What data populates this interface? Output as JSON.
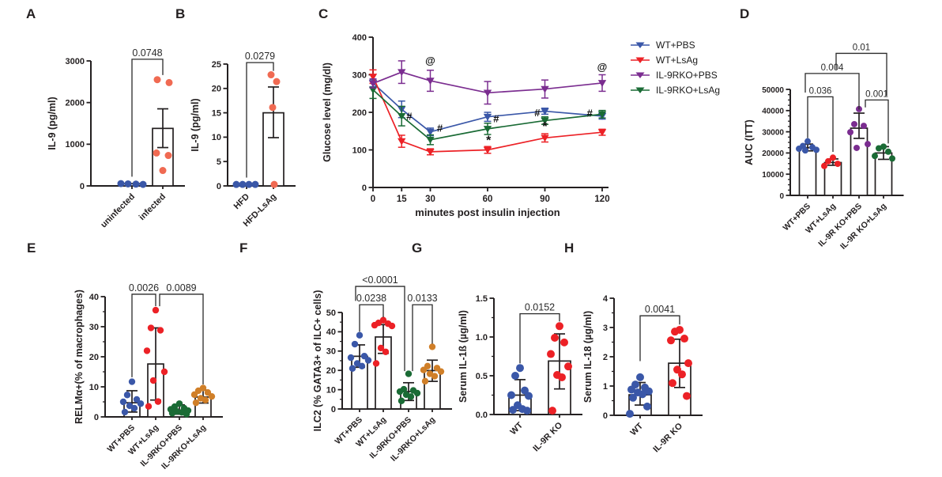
{
  "figure_title": "",
  "chart_data": [
    {
      "id": "A",
      "letter": "A",
      "type": "scatter-bar",
      "ylabel": "IL-9 (pg/ml)",
      "ymax": 3000,
      "yticks": [
        0,
        1000,
        2000,
        3000
      ],
      "groups": [
        {
          "label": "uninfected",
          "color": "#3A57A8",
          "bar": 55,
          "dots": [
            55,
            48,
            42,
            36
          ],
          "jit": [
            -14,
            -5,
            5,
            14
          ]
        },
        {
          "label": "infected",
          "color": "#F06A52",
          "bar": 1380,
          "err": [
            920,
            1850
          ],
          "dots": [
            2550,
            2480,
            790,
            730,
            370
          ],
          "jit": [
            -7,
            8,
            -8,
            7,
            0
          ]
        }
      ],
      "brackets": [
        {
          "g1": 0,
          "g2": 1,
          "top": 3040,
          "b1": 220,
          "b2": 2660,
          "label": "0.0748"
        }
      ]
    },
    {
      "id": "B",
      "letter": "B",
      "type": "scatter-bar",
      "ylabel": "IL-9 (pg/ml)",
      "ymax": 25,
      "yticks": [
        0,
        5,
        10,
        15,
        20,
        25
      ],
      "groups": [
        {
          "label": "HFD",
          "color": "#3A57A8",
          "bar": 0.3,
          "dots": [
            0.3,
            0.3,
            0.3,
            0.3
          ],
          "jit": [
            -13,
            -5,
            3,
            11
          ]
        },
        {
          "label": "HFD-LsAg",
          "color": "#F06A52",
          "bar": 15.0,
          "err": [
            9.9,
            20.3
          ],
          "dots": [
            22.8,
            21.4,
            16.1,
            0.3
          ],
          "jit": [
            -3,
            4,
            -1,
            1
          ]
        }
      ],
      "brackets": [
        {
          "g1": 0,
          "g2": 1,
          "top": 25.3,
          "b1": 1.7,
          "b2": 23.6,
          "label": "0.0279"
        }
      ]
    },
    {
      "id": "C",
      "letter": "C",
      "type": "line",
      "ylabel": "Glucose level (mg/dl)",
      "xlabel": "minutes post insulin injection",
      "ymax": 400,
      "yticks": [
        0,
        100,
        200,
        300,
        400
      ],
      "x": [
        0,
        15,
        30,
        60,
        90,
        120
      ],
      "xmax": 120,
      "series": [
        {
          "name": "WT+PBS",
          "color": "#3A57A8",
          "values": [
            278,
            208,
            148,
            188,
            203,
            190
          ],
          "err": [
            10,
            22,
            10,
            12,
            8,
            8
          ]
        },
        {
          "name": "WT+LsAg",
          "color": "#EC2126",
          "values": [
            295,
            123,
            95,
            100,
            132,
            147
          ],
          "err": [
            18,
            16,
            8,
            9,
            11,
            8
          ]
        },
        {
          "name": "IL-9RKO+PBS",
          "color": "#7B2D90",
          "values": [
            277,
            307,
            284,
            252,
            262,
            278
          ],
          "err": [
            12,
            30,
            28,
            30,
            24,
            22
          ]
        },
        {
          "name": "IL-9RKO+LsAg",
          "color": "#1A6B35",
          "values": [
            260,
            190,
            127,
            156,
            178,
            195
          ],
          "err": [
            23,
            26,
            13,
            15,
            10,
            10
          ]
        }
      ],
      "draw_order": [
        0,
        1,
        3,
        2
      ],
      "annotations": [
        {
          "x": 30,
          "y": 328,
          "t": "@"
        },
        {
          "x": 120,
          "y": 312,
          "t": "@"
        },
        {
          "x": 19,
          "y": 180,
          "t": "#"
        },
        {
          "x": 35,
          "y": 148,
          "t": "#"
        },
        {
          "x": 64.5,
          "y": 174,
          "t": "#"
        },
        {
          "x": 86,
          "y": 190,
          "t": "#"
        },
        {
          "x": 113.5,
          "y": 188,
          "t": "#"
        },
        {
          "x": 60.5,
          "y": 115,
          "t": "*"
        },
        {
          "x": 90,
          "y": 152,
          "t": "*"
        }
      ],
      "legend_position": "right"
    },
    {
      "id": "D",
      "letter": "D",
      "type": "scatter-bar",
      "ylabel": "AUC (ITT)",
      "ymax": 50000,
      "yticks": [
        0,
        10000,
        20000,
        30000,
        40000,
        50000
      ],
      "minor": 2500,
      "groups": [
        {
          "label": "WT+PBS",
          "color": "#3A57A8",
          "bar": 22500,
          "err": [
            21000,
            24200
          ],
          "dots": [
            25500,
            23300,
            22700,
            22000,
            21500,
            21200
          ]
        },
        {
          "label": "WT+LsAg",
          "color": "#EC2126",
          "bar": 15500,
          "err": [
            14200,
            17200
          ],
          "dots": [
            17800,
            16100,
            14900,
            13900
          ]
        },
        {
          "label": "IL-9R KO+PBS",
          "color": "#7B2D90",
          "bar": 31700,
          "err": [
            26900,
            38800
          ],
          "dots": [
            40700,
            33600,
            32800,
            29800,
            24200,
            22400
          ]
        },
        {
          "label": "IL-9R KO+LsAg",
          "color": "#1A6B35",
          "bar": 20000,
          "err": [
            17000,
            23000
          ],
          "dots": [
            23000,
            22200,
            20600,
            18600,
            17400
          ]
        }
      ],
      "brackets": [
        {
          "g1": 0,
          "g2": 1,
          "top": 46500,
          "b1": 27000,
          "b2": 20500,
          "label": "0.036"
        },
        {
          "g1": 0,
          "g2": 2,
          "top": 57500,
          "b1": 48500,
          "b2": 40500,
          "label": "0.004",
          "dx1": -3
        },
        {
          "g1": 1,
          "g2": 3,
          "top": 67000,
          "b1": 59500,
          "b2": 47000,
          "label": "0.01",
          "dx1": 4,
          "dx2": 4
        },
        {
          "g1": 2,
          "g2": 3,
          "top": 45000,
          "b1": 41500,
          "b2": 24500,
          "label": "0.001",
          "dx1": 8,
          "dx2": 6
        }
      ]
    },
    {
      "id": "E",
      "letter": "E",
      "type": "scatter-bar",
      "ylabel": "RELMα+(% of macrophages)",
      "ymax": 40,
      "yticks": [
        0,
        10,
        20,
        30,
        40
      ],
      "minor": 5,
      "groups": [
        {
          "label": "WT+PBS",
          "color": "#3A57A8",
          "bar": 4.7,
          "err": [
            1.6,
            8.7
          ],
          "dots": [
            11.7,
            7.3,
            5.8,
            5.0,
            4.4,
            3.7,
            2.9,
            1.6
          ]
        },
        {
          "label": "WT+LsAg",
          "color": "#EC2126",
          "bar": 17.6,
          "err": [
            5.6,
            29.6
          ],
          "dots": [
            35.5,
            29.6,
            28.8,
            22.0,
            15.0,
            12.1,
            5.1,
            3.5
          ]
        },
        {
          "label": "IL-9RKO+PBS",
          "color": "#1A6B35",
          "bar": 2.1,
          "err": [
            0.9,
            4.0
          ],
          "dots": [
            4.4,
            3.4,
            2.9,
            2.5,
            2.1,
            1.8,
            1.5,
            1.2,
            0.9
          ]
        },
        {
          "label": "IL-9RKO+LsAg",
          "color": "#D07F28",
          "bar": 6.6,
          "err": [
            4.6,
            8.9
          ],
          "dots": [
            9.6,
            8.7,
            8.1,
            7.4,
            6.8,
            6.2,
            5.6,
            4.7
          ]
        }
      ],
      "brackets": [
        {
          "g1": 0,
          "g2": 1,
          "top": 40.8,
          "b1": 13.2,
          "b2": 36.8,
          "label": "0.0026"
        },
        {
          "g1": 1,
          "g2": 3,
          "top": 40.8,
          "b1": 36.8,
          "b2": 10.8,
          "label": "0.0089",
          "dx1": 5
        }
      ]
    },
    {
      "id": "F",
      "letter": "F",
      "type": "scatter-bar",
      "ylabel": "ILC2 (% GATA3+ of ILC+ cells)",
      "ymax": 50,
      "yticks": [
        0,
        10,
        20,
        30,
        40,
        50
      ],
      "minor": 5,
      "groups": [
        {
          "label": "WT+PBS",
          "color": "#3A57A8",
          "bar": 27.3,
          "err": [
            21.6,
            33.2
          ],
          "dots": [
            38.2,
            33.6,
            27.4,
            26.6,
            25.2,
            23.6,
            22.2,
            21.0
          ]
        },
        {
          "label": "WT+LsAg",
          "color": "#EC2126",
          "bar": 37.3,
          "err": [
            28.8,
            43.7
          ],
          "dots": [
            46.0,
            44.6,
            44.2,
            43.4,
            43.0,
            31.6,
            29.6,
            23.6
          ]
        },
        {
          "label": "IL-9RKO+PBS",
          "color": "#1A6B35",
          "bar": 9.0,
          "err": [
            4.4,
            13.6
          ],
          "dots": [
            18.2,
            10.2,
            9.6,
            9.0,
            8.2,
            7.4,
            6.4,
            4.2
          ]
        },
        {
          "label": "IL-9RKO+LsAg",
          "color": "#D07F28",
          "bar": 19.9,
          "err": [
            14.3,
            25.3
          ],
          "dots": [
            32.2,
            22.2,
            21.2,
            20.2,
            19.4,
            18.2,
            17.0,
            14.4
          ]
        }
      ],
      "brackets": [
        {
          "g1": 0,
          "g2": 1,
          "top": 54,
          "b1": 40,
          "b2": 47.5,
          "label": "0.0238"
        },
        {
          "g1": 0,
          "g2": 2,
          "top": 63.5,
          "b1": 56,
          "b2": 19.6,
          "label": "<0.0001",
          "dx1": -5,
          "dx2": -5
        },
        {
          "g1": 2,
          "g2": 3,
          "top": 54,
          "b1": 19.6,
          "b2": 33.8,
          "label": "0.0133",
          "dx1": 5
        }
      ]
    },
    {
      "id": "G",
      "letter": "G",
      "type": "scatter-bar",
      "ylabel": "Serum IL-1ß (µg/ml)",
      "ymax": 1.5,
      "yticks": [
        {
          "v": 0,
          "t": "0.0"
        },
        {
          "v": 0.5,
          "t": "0.5"
        },
        {
          "v": 1.0,
          "t": "1.0"
        },
        {
          "v": 1.5,
          "t": "1.5"
        }
      ],
      "minor": 0.25,
      "groups": [
        {
          "label": "WT",
          "color": "#3A57A8",
          "bar": 0.25,
          "err": [
            0.05,
            0.45
          ],
          "dots": [
            0.6,
            0.5,
            0.31,
            0.25,
            0.24,
            0.12,
            0.07,
            0.06,
            0.05
          ]
        },
        {
          "label": "IL-9R KO",
          "color": "#EC2126",
          "bar": 0.69,
          "err": [
            0.33,
            1.04
          ],
          "dots": [
            1.14,
            0.99,
            0.93,
            0.78,
            0.62,
            0.51,
            0.48,
            0.05
          ]
        }
      ],
      "brackets": [
        {
          "g1": 0,
          "g2": 1,
          "top": 1.3,
          "b1": 0.66,
          "b2": 1.2,
          "label": "0.0152"
        }
      ]
    },
    {
      "id": "H",
      "letter": "H",
      "type": "scatter-bar",
      "ylabel": "Serum IL-18 (µg/ml)",
      "ymax": 4,
      "yticks": [
        0,
        1,
        2,
        3,
        4
      ],
      "minor": 0.5,
      "groups": [
        {
          "label": "WT",
          "color": "#3A57A8",
          "bar": 0.7,
          "err": [
            0.35,
            1.12
          ],
          "dots": [
            1.3,
            1.05,
            0.95,
            0.88,
            0.82,
            0.78,
            0.72,
            0.6,
            0.3,
            0.05
          ]
        },
        {
          "label": "IL-9R KO",
          "color": "#EC2126",
          "bar": 1.78,
          "err": [
            0.95,
            2.6
          ],
          "dots": [
            2.92,
            2.86,
            2.62,
            2.56,
            1.78,
            1.56,
            1.4,
            1.1,
            0.66
          ]
        }
      ],
      "brackets": [
        {
          "g1": 0,
          "g2": 1,
          "top": 3.4,
          "b1": 1.85,
          "b2": 3.1,
          "label": "0.0041"
        }
      ]
    }
  ]
}
